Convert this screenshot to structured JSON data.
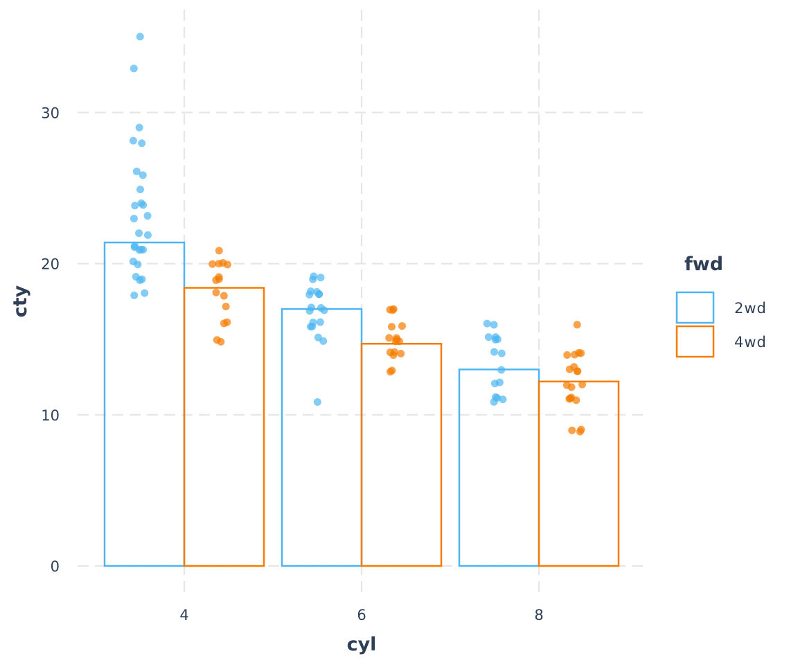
{
  "chart_data": {
    "type": "bar",
    "xlabel": "cyl",
    "ylabel": "cty",
    "categories": [
      "4",
      "6",
      "8"
    ],
    "y_ticks": [
      "0",
      "10",
      "20",
      "30"
    ],
    "ylim": [
      0,
      36
    ],
    "grid": true,
    "legend": {
      "title": "fwd",
      "placement": "right",
      "entries": [
        {
          "label": "2wd",
          "color": "#4db6f2"
        },
        {
          "label": "4wd",
          "color": "#f57c00"
        }
      ]
    },
    "series": [
      {
        "name": "2wd",
        "color": "#4db6f2",
        "values": [
          21.4,
          17.0,
          13.0
        ]
      },
      {
        "name": "4wd",
        "color": "#f57c00",
        "values": [
          18.4,
          14.7,
          12.2
        ]
      }
    ],
    "points": [
      {
        "series": "2wd",
        "category": "4",
        "values": [
          35,
          33,
          29,
          28,
          28,
          26,
          26,
          25,
          24,
          24,
          24,
          23,
          23,
          22,
          22,
          21,
          21,
          21,
          21,
          21,
          20,
          20,
          19,
          19,
          19,
          18,
          18
        ]
      },
      {
        "series": "4wd",
        "category": "4",
        "values": [
          21,
          20,
          20,
          20,
          20,
          19,
          19,
          19,
          18,
          18,
          17,
          16,
          16,
          15,
          15
        ]
      },
      {
        "series": "2wd",
        "category": "6",
        "values": [
          19,
          19,
          19,
          18,
          18,
          18,
          18,
          18,
          17,
          17,
          17,
          17,
          16,
          16,
          16,
          16,
          15,
          15,
          11
        ]
      },
      {
        "series": "4wd",
        "category": "6",
        "values": [
          17,
          17,
          17,
          16,
          16,
          15,
          15,
          15,
          15,
          15,
          14,
          14,
          14,
          14,
          13,
          13
        ]
      },
      {
        "series": "2wd",
        "category": "8",
        "values": [
          16,
          16,
          15,
          15,
          15,
          15,
          14,
          14,
          13,
          12,
          12,
          11,
          11,
          11,
          11
        ]
      },
      {
        "series": "4wd",
        "category": "8",
        "values": [
          16,
          14,
          14,
          14,
          14,
          13,
          13,
          13,
          13,
          12,
          12,
          12,
          11,
          11,
          11,
          11,
          9,
          9,
          9
        ]
      }
    ]
  }
}
